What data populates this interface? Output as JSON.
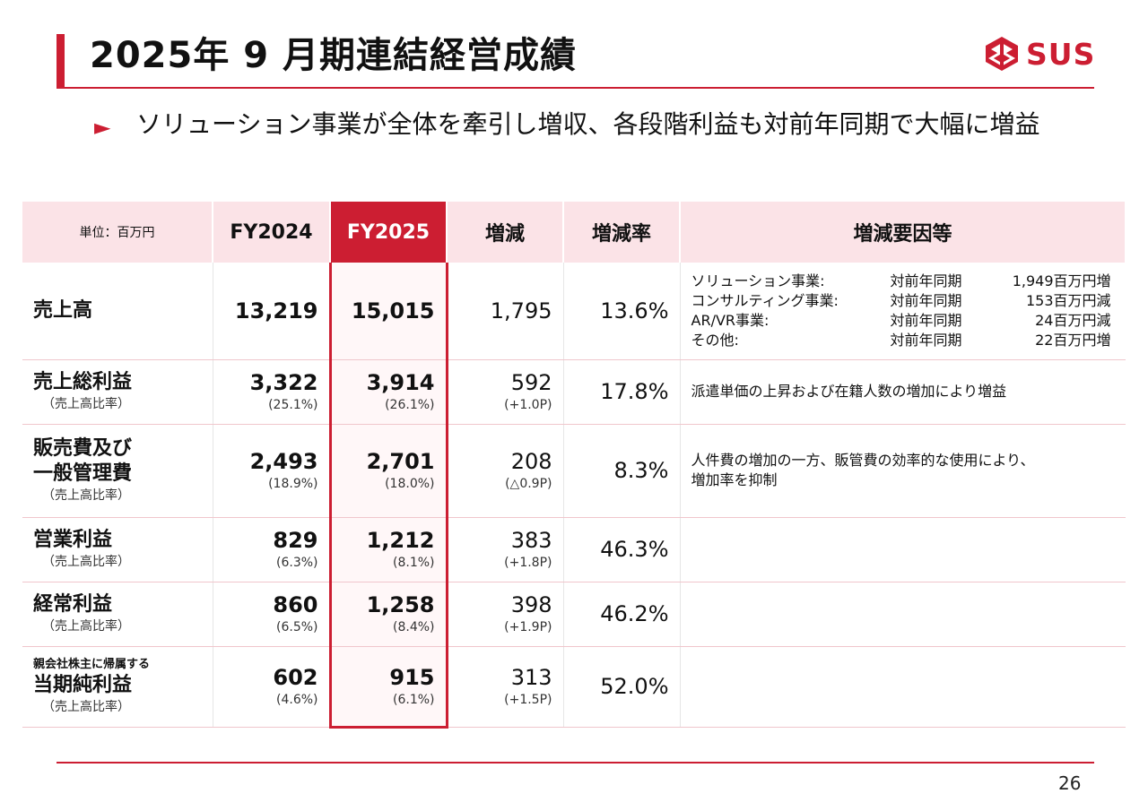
{
  "title": "2025年 9 月期連結経営成績",
  "logo": {
    "text": "SUS",
    "icon": "sus-logo-icon",
    "color": "#cc1e32"
  },
  "subtitle": "ソリューション事業が全体を牽引し増収、各段階利益も対前年同期で大幅に増益",
  "bullet_mark": "►",
  "accent_color": "#cc1e32",
  "table": {
    "headers": [
      "単位：百万円",
      "FY2024",
      "FY2025",
      "増減",
      "増減率",
      "増減要因等"
    ],
    "rows": [
      {
        "label": "売上高",
        "label_pre": "",
        "label_sub": "",
        "fy2024": "13,219",
        "fy2024_ratio": "",
        "fy2025": "15,015",
        "fy2025_ratio": "",
        "change": "1,795",
        "change_pt": "",
        "rate": "13.6%",
        "factors": [
          {
            "segment": "ソリューション事業:",
            "period": "対前年同期",
            "amount": "1,949百万円増"
          },
          {
            "segment": "コンサルティング事業:",
            "period": "対前年同期",
            "amount": "153百万円減"
          },
          {
            "segment": "AR/VR事業:",
            "period": "対前年同期",
            "amount": "24百万円減"
          },
          {
            "segment": "その他:",
            "period": "対前年同期",
            "amount": "22百万円増"
          }
        ],
        "factor_text": ""
      },
      {
        "label": "売上総利益",
        "label_pre": "",
        "label_sub": "（売上高比率）",
        "fy2024": "3,322",
        "fy2024_ratio": "(25.1%)",
        "fy2025": "3,914",
        "fy2025_ratio": "(26.1%)",
        "change": "592",
        "change_pt": "(+1.0P)",
        "rate": "17.8%",
        "factors": [],
        "factor_text": "派遣単価の上昇および在籍人数の増加により増益"
      },
      {
        "label": "販売費及び\n一般管理費",
        "label_pre": "",
        "label_sub": "（売上高比率）",
        "fy2024": "2,493",
        "fy2024_ratio": "(18.9%)",
        "fy2025": "2,701",
        "fy2025_ratio": "(18.0%)",
        "change": "208",
        "change_pt": "(△0.9P)",
        "rate": "8.3%",
        "factors": [],
        "factor_text": "人件費の増加の一方、販管費の効率的な使用により、\n増加率を抑制"
      },
      {
        "label": "営業利益",
        "label_pre": "",
        "label_sub": "（売上高比率）",
        "fy2024": "829",
        "fy2024_ratio": "(6.3%)",
        "fy2025": "1,212",
        "fy2025_ratio": "(8.1%)",
        "change": "383",
        "change_pt": "(+1.8P)",
        "rate": "46.3%",
        "factors": [],
        "factor_text": ""
      },
      {
        "label": "経常利益",
        "label_pre": "",
        "label_sub": "（売上高比率）",
        "fy2024": "860",
        "fy2024_ratio": "(6.5%)",
        "fy2025": "1,258",
        "fy2025_ratio": "(8.4%)",
        "change": "398",
        "change_pt": "(+1.9P)",
        "rate": "46.2%",
        "factors": [],
        "factor_text": ""
      },
      {
        "label": "当期純利益",
        "label_pre": "親会社株主に帰属する",
        "label_sub": "（売上高比率）",
        "fy2024": "602",
        "fy2024_ratio": "(4.6%)",
        "fy2025": "915",
        "fy2025_ratio": "(6.1%)",
        "change": "313",
        "change_pt": "(+1.5P)",
        "rate": "52.0%",
        "factors": [],
        "factor_text": ""
      }
    ]
  },
  "page_number": "26"
}
